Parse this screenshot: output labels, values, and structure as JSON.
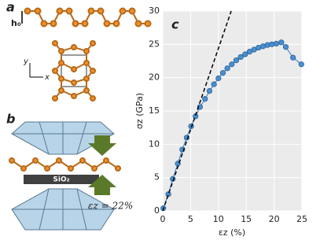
{
  "figure": {
    "panel_labels": [
      "a",
      "b",
      "c"
    ],
    "height_label": "h₀",
    "axis_y": "y",
    "axis_x": "x",
    "substrate_label": "SiO₂",
    "strain_label": "εz = 22%"
  },
  "chart_data": {
    "type": "scatter",
    "x_label": "εz (%)",
    "y_label": "σz (GPa)",
    "xlim": [
      0,
      25
    ],
    "ylim": [
      0,
      30
    ],
    "xticks": [
      0,
      5,
      10,
      15,
      20,
      25
    ],
    "yticks": [
      0,
      5,
      10,
      15,
      20,
      25,
      30
    ],
    "grid": true,
    "series": [
      {
        "color": "#4a8fd0",
        "x": [
          0.1,
          1,
          1.8,
          2.7,
          3.5,
          4.3,
          5.1,
          5.9,
          6.7,
          7.6,
          8.4,
          9.2,
          10,
          10.8,
          11.6,
          12.4,
          13.2,
          14,
          14.8,
          15.6,
          16.4,
          17.2,
          18,
          18.8,
          19.6,
          20.4,
          21.3,
          22.1,
          23.4,
          24.9
        ],
        "values": [
          0.4,
          2.5,
          4.8,
          7.1,
          9.2,
          11,
          12.7,
          14.2,
          15.6,
          16.8,
          18,
          19,
          19.9,
          20.7,
          21.4,
          22,
          22.6,
          23.1,
          23.5,
          23.9,
          24.2,
          24.5,
          24.7,
          24.9,
          25,
          25.1,
          25.3,
          24.6,
          23,
          22
        ]
      },
      {
        "color": "#000000",
        "dashed": true,
        "x": [
          0,
          12.3
        ],
        "values": [
          0,
          30
        ]
      }
    ]
  }
}
